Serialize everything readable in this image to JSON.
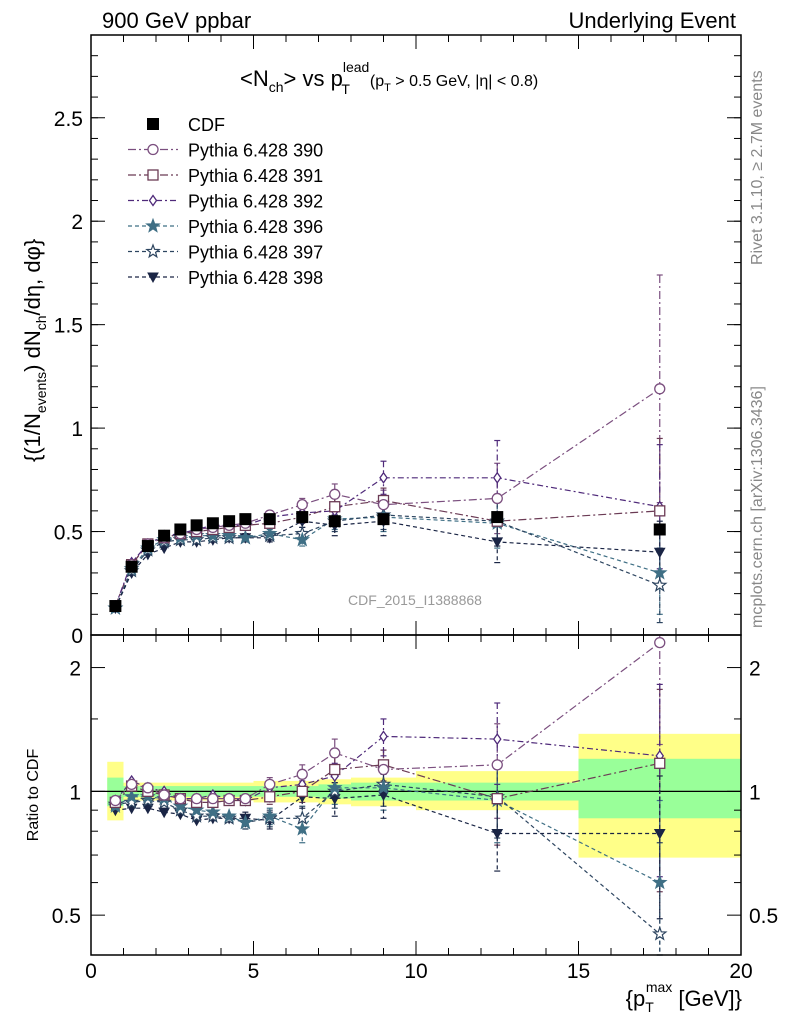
{
  "header": {
    "left": "900 GeV ppbar",
    "right": "Underlying Event"
  },
  "side_labels": {
    "rivet": "Rivet 3.1.10, ≥ 2.7M events",
    "mcplots": "mcplots.cern.ch [arXiv:1306.3436]"
  },
  "watermark": "CDF_2015_I1388868",
  "colors": {
    "data": "#000000",
    "s390": "#7b4f7f",
    "s391": "#6b3b55",
    "s392": "#4f2a7a",
    "s396": "#3f6f85",
    "s397": "#2d4560",
    "s398": "#1a2545",
    "band_inner": "#99ff99",
    "band_outer": "#ffff88"
  },
  "chart_data": [
    {
      "type": "line",
      "panel": "main",
      "title": "<N_ch> vs p_T^lead (p_T > 0.5 GeV, |η| < 0.8)",
      "title_parts": {
        "main": "<N",
        "main_sub": "ch",
        "mid": "> vs p",
        "sup": "lead",
        "sub2": "T",
        "cut": "(p",
        "cut_sub": "T",
        "cut_rest": " > 0.5 GeV, |η| < 0.8)"
      },
      "ylabel": "{(1/N_events) dN_ch/dη, dφ}",
      "ylabel_parts": {
        "a": "{(1/N",
        "a_sub": "events",
        "b": ") dN",
        "b_sub": "ch",
        "c": "/dη, dφ}"
      },
      "xlim": [
        0,
        20
      ],
      "ylim": [
        0,
        2.9
      ],
      "yticks": [
        "0",
        "0.5",
        "1",
        "1.5",
        "2",
        "2.5"
      ],
      "ytick_values": [
        0,
        0.5,
        1,
        1.5,
        2,
        2.5
      ],
      "legend_position": "top-left",
      "x": [
        0.75,
        1.25,
        1.75,
        2.25,
        2.75,
        3.25,
        3.75,
        4.25,
        4.75,
        5.5,
        6.5,
        7.5,
        9.0,
        12.5,
        17.5
      ],
      "series": [
        {
          "key": "cdf",
          "name": "CDF",
          "marker": "filled-square",
          "dash": "none",
          "values": [
            0.14,
            0.33,
            0.43,
            0.48,
            0.51,
            0.53,
            0.54,
            0.55,
            0.56,
            0.56,
            0.57,
            0.55,
            0.56,
            0.57,
            0.51
          ]
        },
        {
          "key": "s390",
          "name": "Pythia 6.428 390",
          "marker": "open-circle",
          "dash": "8,3,2,3",
          "values": [
            0.14,
            0.34,
            0.44,
            0.47,
            0.49,
            0.51,
            0.52,
            0.53,
            0.54,
            0.58,
            0.63,
            0.68,
            0.63,
            0.66,
            1.19
          ],
          "err": [
            0.01,
            0.01,
            0.01,
            0.01,
            0.01,
            0.01,
            0.01,
            0.01,
            0.01,
            0.02,
            0.03,
            0.05,
            0.07,
            0.17,
            0.55
          ]
        },
        {
          "key": "s391",
          "name": "Pythia 6.428 391",
          "marker": "open-square",
          "dash": "8,3,2,3",
          "values": [
            0.14,
            0.34,
            0.44,
            0.47,
            0.49,
            0.5,
            0.51,
            0.52,
            0.53,
            0.54,
            0.57,
            0.62,
            0.65,
            0.55,
            0.6
          ],
          "err": [
            0.01,
            0.01,
            0.01,
            0.01,
            0.01,
            0.01,
            0.01,
            0.01,
            0.01,
            0.02,
            0.03,
            0.04,
            0.06,
            0.12,
            0.35
          ]
        },
        {
          "key": "s392",
          "name": "Pythia 6.428 392",
          "marker": "open-diamond",
          "dash": "6,3,2,3",
          "values": [
            0.14,
            0.35,
            0.44,
            0.48,
            0.49,
            0.51,
            0.53,
            0.53,
            0.53,
            0.57,
            0.59,
            0.6,
            0.76,
            0.76,
            0.62
          ],
          "err": [
            0.01,
            0.01,
            0.01,
            0.01,
            0.01,
            0.01,
            0.01,
            0.01,
            0.01,
            0.02,
            0.03,
            0.04,
            0.08,
            0.18,
            0.3
          ]
        },
        {
          "key": "s396",
          "name": "Pythia 6.428 396",
          "marker": "filled-star",
          "dash": "4,3",
          "values": [
            0.13,
            0.32,
            0.42,
            0.46,
            0.47,
            0.48,
            0.48,
            0.48,
            0.47,
            0.49,
            0.46,
            0.56,
            0.57,
            0.54,
            0.3
          ],
          "err": [
            0.01,
            0.01,
            0.01,
            0.01,
            0.01,
            0.01,
            0.01,
            0.01,
            0.02,
            0.02,
            0.03,
            0.05,
            0.07,
            0.12,
            0.2
          ]
        },
        {
          "key": "s397",
          "name": "Pythia 6.428 397",
          "marker": "open-star",
          "dash": "4,3",
          "values": [
            0.13,
            0.31,
            0.41,
            0.45,
            0.46,
            0.46,
            0.47,
            0.47,
            0.47,
            0.48,
            0.49,
            0.55,
            0.58,
            0.55,
            0.24
          ],
          "err": [
            0.01,
            0.01,
            0.01,
            0.01,
            0.01,
            0.01,
            0.01,
            0.01,
            0.02,
            0.02,
            0.03,
            0.05,
            0.07,
            0.12,
            0.18
          ]
        },
        {
          "key": "s398",
          "name": "Pythia 6.428 398",
          "marker": "filled-triangle-down",
          "dash": "4,3",
          "values": [
            0.13,
            0.3,
            0.39,
            0.42,
            0.45,
            0.45,
            0.46,
            0.47,
            0.47,
            0.47,
            0.55,
            0.53,
            0.55,
            0.45,
            0.4
          ],
          "err": [
            0.01,
            0.01,
            0.01,
            0.01,
            0.01,
            0.01,
            0.01,
            0.01,
            0.02,
            0.02,
            0.03,
            0.05,
            0.07,
            0.1,
            0.15
          ]
        }
      ]
    },
    {
      "type": "line",
      "panel": "ratio",
      "ylabel": "Ratio to CDF",
      "xlabel": "{p_T^max [GeV]}",
      "xlabel_parts": {
        "a": "{p",
        "sub": "T",
        "sup": "max",
        "b": " [GeV]}"
      },
      "xlim": [
        0,
        20
      ],
      "ylim": [
        0.4,
        2.4
      ],
      "log_y": true,
      "xticks": [
        "0",
        "5",
        "10",
        "15",
        "20"
      ],
      "xtick_values": [
        0,
        5,
        10,
        15,
        20
      ],
      "yticks": [
        "0.5",
        "1",
        "2"
      ],
      "ytick_values": [
        0.5,
        1,
        2
      ],
      "bands": [
        {
          "x0": 0.5,
          "x1": 1.0,
          "inner": [
            0.92,
            1.08
          ],
          "outer": [
            0.85,
            1.18
          ]
        },
        {
          "x0": 1.0,
          "x1": 1.5,
          "inner": [
            0.97,
            1.03
          ],
          "outer": [
            0.95,
            1.05
          ]
        },
        {
          "x0": 1.5,
          "x1": 5.0,
          "inner": [
            0.97,
            1.03
          ],
          "outer": [
            0.95,
            1.05
          ]
        },
        {
          "x0": 5.0,
          "x1": 6.0,
          "inner": [
            0.97,
            1.03
          ],
          "outer": [
            0.94,
            1.06
          ]
        },
        {
          "x0": 6.0,
          "x1": 7.0,
          "inner": [
            0.97,
            1.03
          ],
          "outer": [
            0.94,
            1.06
          ]
        },
        {
          "x0": 7.0,
          "x1": 8.0,
          "inner": [
            0.96,
            1.04
          ],
          "outer": [
            0.93,
            1.07
          ]
        },
        {
          "x0": 8.0,
          "x1": 10.0,
          "inner": [
            0.95,
            1.05
          ],
          "outer": [
            0.92,
            1.08
          ]
        },
        {
          "x0": 10.0,
          "x1": 15.0,
          "inner": [
            0.95,
            1.05
          ],
          "outer": [
            0.9,
            1.12
          ]
        },
        {
          "x0": 15.0,
          "x1": 20.0,
          "inner": [
            0.86,
            1.2
          ],
          "outer": [
            0.69,
            1.38
          ]
        }
      ],
      "x": [
        0.75,
        1.25,
        1.75,
        2.25,
        2.75,
        3.25,
        3.75,
        4.25,
        4.75,
        5.5,
        6.5,
        7.5,
        9.0,
        12.5,
        17.5
      ],
      "series": [
        {
          "key": "s390",
          "values": [
            0.95,
            1.04,
            1.02,
            0.98,
            0.96,
            0.96,
            0.96,
            0.96,
            0.96,
            1.04,
            1.1,
            1.24,
            1.13,
            1.16,
            2.3
          ],
          "err": [
            0.02,
            0.02,
            0.02,
            0.02,
            0.02,
            0.02,
            0.02,
            0.02,
            0.02,
            0.04,
            0.06,
            0.1,
            0.13,
            0.3,
            1.0
          ]
        },
        {
          "key": "s391",
          "values": [
            0.94,
            1.03,
            1.0,
            0.98,
            0.96,
            0.94,
            0.94,
            0.95,
            0.95,
            0.97,
            1.0,
            1.13,
            1.16,
            0.96,
            1.17
          ],
          "err": [
            0.02,
            0.02,
            0.02,
            0.02,
            0.02,
            0.02,
            0.02,
            0.02,
            0.02,
            0.04,
            0.06,
            0.08,
            0.1,
            0.22,
            0.6
          ]
        },
        {
          "key": "s392",
          "values": [
            0.95,
            1.06,
            1.02,
            1.0,
            0.96,
            0.96,
            0.98,
            0.96,
            0.95,
            1.02,
            1.04,
            1.09,
            1.36,
            1.34,
            1.22
          ],
          "err": [
            0.02,
            0.02,
            0.02,
            0.02,
            0.02,
            0.02,
            0.02,
            0.02,
            0.02,
            0.04,
            0.06,
            0.08,
            0.14,
            0.3,
            0.6
          ]
        },
        {
          "key": "s396",
          "values": [
            0.92,
            0.97,
            0.97,
            0.96,
            0.92,
            0.9,
            0.89,
            0.87,
            0.84,
            0.87,
            0.81,
            1.02,
            1.02,
            0.95,
            0.6
          ],
          "err": [
            0.02,
            0.02,
            0.02,
            0.02,
            0.02,
            0.02,
            0.02,
            0.02,
            0.03,
            0.04,
            0.06,
            0.09,
            0.12,
            0.2,
            0.35
          ]
        },
        {
          "key": "s397",
          "values": [
            0.93,
            0.94,
            0.95,
            0.94,
            0.9,
            0.87,
            0.87,
            0.86,
            0.84,
            0.86,
            0.86,
            1.0,
            1.04,
            0.97,
            0.45
          ],
          "err": [
            0.02,
            0.02,
            0.02,
            0.02,
            0.02,
            0.02,
            0.02,
            0.02,
            0.03,
            0.04,
            0.06,
            0.09,
            0.12,
            0.2,
            0.3
          ]
        },
        {
          "key": "s398",
          "values": [
            0.9,
            0.91,
            0.91,
            0.89,
            0.88,
            0.85,
            0.86,
            0.86,
            0.86,
            0.85,
            0.97,
            0.96,
            0.98,
            0.79,
            0.79
          ],
          "err": [
            0.02,
            0.02,
            0.02,
            0.02,
            0.02,
            0.02,
            0.02,
            0.02,
            0.03,
            0.04,
            0.06,
            0.09,
            0.12,
            0.15,
            0.3
          ]
        }
      ]
    }
  ]
}
